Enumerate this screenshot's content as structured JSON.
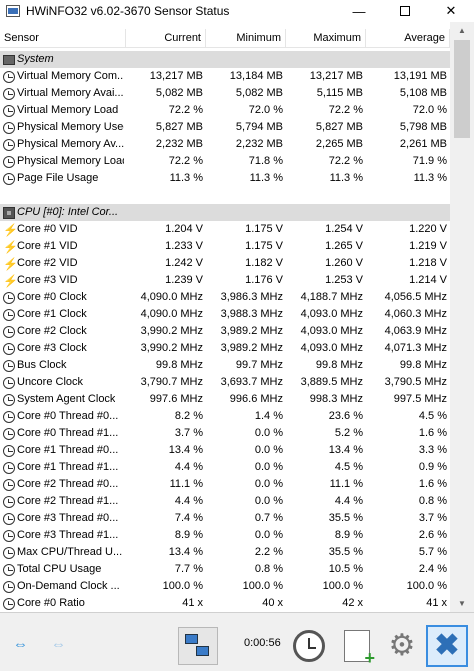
{
  "window": {
    "title": "HWiNFO32 v6.02-3670 Sensor Status",
    "minimize_glyph": "—",
    "close_glyph": "✕"
  },
  "columns": [
    "Sensor",
    "Current",
    "Minimum",
    "Maximum",
    "Average"
  ],
  "rows": [
    {
      "type": "group",
      "icon": "memory-icon",
      "label": "System"
    },
    {
      "type": "sensor",
      "icon": "clock-icon",
      "label": "Virtual Memory Com...",
      "current": "13,217 MB",
      "min": "13,184 MB",
      "max": "13,217 MB",
      "avg": "13,191 MB"
    },
    {
      "type": "sensor",
      "icon": "clock-icon",
      "label": "Virtual Memory Avai...",
      "current": "5,082 MB",
      "min": "5,082 MB",
      "max": "5,115 MB",
      "avg": "5,108 MB"
    },
    {
      "type": "sensor",
      "icon": "clock-icon",
      "label": "Virtual Memory Load",
      "current": "72.2 %",
      "min": "72.0 %",
      "max": "72.2 %",
      "avg": "72.0 %"
    },
    {
      "type": "sensor",
      "icon": "clock-icon",
      "label": "Physical Memory Used",
      "current": "5,827 MB",
      "min": "5,794 MB",
      "max": "5,827 MB",
      "avg": "5,798 MB"
    },
    {
      "type": "sensor",
      "icon": "clock-icon",
      "label": "Physical Memory Av...",
      "current": "2,232 MB",
      "min": "2,232 MB",
      "max": "2,265 MB",
      "avg": "2,261 MB"
    },
    {
      "type": "sensor",
      "icon": "clock-icon",
      "label": "Physical Memory Load",
      "current": "72.2 %",
      "min": "71.8 %",
      "max": "72.2 %",
      "avg": "71.9 %"
    },
    {
      "type": "sensor",
      "icon": "clock-icon",
      "label": "Page File Usage",
      "current": "11.3 %",
      "min": "11.3 %",
      "max": "11.3 %",
      "avg": "11.3 %"
    },
    {
      "type": "blank"
    },
    {
      "type": "group",
      "icon": "cpu-icon",
      "label": "CPU [#0]: Intel Cor..."
    },
    {
      "type": "sensor",
      "icon": "voltage-icon",
      "label": "Core #0 VID",
      "current": "1.204 V",
      "min": "1.175 V",
      "max": "1.254 V",
      "avg": "1.220 V"
    },
    {
      "type": "sensor",
      "icon": "voltage-icon",
      "label": "Core #1 VID",
      "current": "1.233 V",
      "min": "1.175 V",
      "max": "1.265 V",
      "avg": "1.219 V"
    },
    {
      "type": "sensor",
      "icon": "voltage-icon",
      "label": "Core #2 VID",
      "current": "1.242 V",
      "min": "1.182 V",
      "max": "1.260 V",
      "avg": "1.218 V"
    },
    {
      "type": "sensor",
      "icon": "voltage-icon",
      "label": "Core #3 VID",
      "current": "1.239 V",
      "min": "1.176 V",
      "max": "1.253 V",
      "avg": "1.214 V"
    },
    {
      "type": "sensor",
      "icon": "clock-icon",
      "label": "Core #0 Clock",
      "current": "4,090.0 MHz",
      "min": "3,986.3 MHz",
      "max": "4,188.7 MHz",
      "avg": "4,056.5 MHz"
    },
    {
      "type": "sensor",
      "icon": "clock-icon",
      "label": "Core #1 Clock",
      "current": "4,090.0 MHz",
      "min": "3,988.3 MHz",
      "max": "4,093.0 MHz",
      "avg": "4,060.3 MHz"
    },
    {
      "type": "sensor",
      "icon": "clock-icon",
      "label": "Core #2 Clock",
      "current": "3,990.2 MHz",
      "min": "3,989.2 MHz",
      "max": "4,093.0 MHz",
      "avg": "4,063.9 MHz"
    },
    {
      "type": "sensor",
      "icon": "clock-icon",
      "label": "Core #3 Clock",
      "current": "3,990.2 MHz",
      "min": "3,989.2 MHz",
      "max": "4,093.0 MHz",
      "avg": "4,071.3 MHz"
    },
    {
      "type": "sensor",
      "icon": "clock-icon",
      "label": "Bus Clock",
      "current": "99.8 MHz",
      "min": "99.7 MHz",
      "max": "99.8 MHz",
      "avg": "99.8 MHz"
    },
    {
      "type": "sensor",
      "icon": "clock-icon",
      "label": "Uncore Clock",
      "current": "3,790.7 MHz",
      "min": "3,693.7 MHz",
      "max": "3,889.5 MHz",
      "avg": "3,790.5 MHz"
    },
    {
      "type": "sensor",
      "icon": "clock-icon",
      "label": "System Agent Clock",
      "current": "997.6 MHz",
      "min": "996.6 MHz",
      "max": "998.3 MHz",
      "avg": "997.5 MHz"
    },
    {
      "type": "sensor",
      "icon": "clock-icon",
      "label": "Core #0 Thread #0...",
      "current": "8.2 %",
      "min": "1.4 %",
      "max": "23.6 %",
      "avg": "4.5 %"
    },
    {
      "type": "sensor",
      "icon": "clock-icon",
      "label": "Core #0 Thread #1...",
      "current": "3.7 %",
      "min": "0.0 %",
      "max": "5.2 %",
      "avg": "1.6 %"
    },
    {
      "type": "sensor",
      "icon": "clock-icon",
      "label": "Core #1 Thread #0...",
      "current": "13.4 %",
      "min": "0.0 %",
      "max": "13.4 %",
      "avg": "3.3 %"
    },
    {
      "type": "sensor",
      "icon": "clock-icon",
      "label": "Core #1 Thread #1...",
      "current": "4.4 %",
      "min": "0.0 %",
      "max": "4.5 %",
      "avg": "0.9 %"
    },
    {
      "type": "sensor",
      "icon": "clock-icon",
      "label": "Core #2 Thread #0...",
      "current": "11.1 %",
      "min": "0.0 %",
      "max": "11.1 %",
      "avg": "1.6 %"
    },
    {
      "type": "sensor",
      "icon": "clock-icon",
      "label": "Core #2 Thread #1...",
      "current": "4.4 %",
      "min": "0.0 %",
      "max": "4.4 %",
      "avg": "0.8 %"
    },
    {
      "type": "sensor",
      "icon": "clock-icon",
      "label": "Core #3 Thread #0...",
      "current": "7.4 %",
      "min": "0.7 %",
      "max": "35.5 %",
      "avg": "3.7 %"
    },
    {
      "type": "sensor",
      "icon": "clock-icon",
      "label": "Core #3 Thread #1...",
      "current": "8.9 %",
      "min": "0.0 %",
      "max": "8.9 %",
      "avg": "2.6 %"
    },
    {
      "type": "sensor",
      "icon": "clock-icon",
      "label": "Max CPU/Thread U...",
      "current": "13.4 %",
      "min": "2.2 %",
      "max": "35.5 %",
      "avg": "5.7 %"
    },
    {
      "type": "sensor",
      "icon": "clock-icon",
      "label": "Total CPU Usage",
      "current": "7.7 %",
      "min": "0.8 %",
      "max": "10.5 %",
      "avg": "2.4 %"
    },
    {
      "type": "sensor",
      "icon": "clock-icon",
      "label": "On-Demand Clock ...",
      "current": "100.0 %",
      "min": "100.0 %",
      "max": "100.0 %",
      "avg": "100.0 %"
    },
    {
      "type": "sensor",
      "icon": "clock-icon",
      "label": "Core #0 Ratio",
      "current": "41 x",
      "min": "40 x",
      "max": "42 x",
      "avg": "41 x"
    }
  ],
  "toolbar": {
    "elapsed_time": "0:00:56",
    "nav_glyph": "⇔",
    "close_glyph": "✖",
    "gear_glyph": "⚙"
  },
  "colors": {
    "group_row": "#dcdcdc",
    "toolbar": "#f0f0f0",
    "accent": "#3a8de0"
  }
}
